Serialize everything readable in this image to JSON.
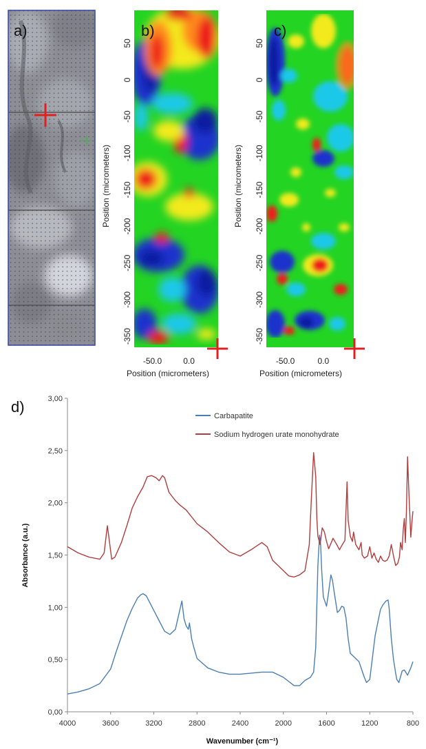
{
  "panels": {
    "a": {
      "letter": "a)"
    },
    "b": {
      "letter": "b)",
      "ylabel": "Position (micrometers)",
      "xlabel": "Position (micrometers)",
      "yticks": [
        "50",
        "0",
        "-50",
        "-100",
        "-150",
        "-200",
        "-250",
        "-300",
        "-350"
      ],
      "xticks": [
        "-50.0",
        "0.0"
      ]
    },
    "c": {
      "letter": "c)",
      "ylabel": "Position (micrometers)",
      "xlabel": "Position (micrometers)",
      "yticks": [
        "50",
        "0",
        "-50",
        "-100",
        "-150",
        "-200",
        "-250",
        "-300",
        "-350"
      ],
      "xticks": [
        "-50.0",
        "0.0"
      ]
    },
    "d": {
      "letter": "d)"
    }
  },
  "colors": {
    "carbapatite": "#4a7db5",
    "urate": "#b23b3b",
    "marker": "#e02020",
    "map_border": "#3344aa"
  },
  "chart_data": [
    {
      "type": "heatmap",
      "panel": "b",
      "xlabel": "Position (micrometers)",
      "ylabel": "Position (micrometers)",
      "xlim": [
        -75,
        40
      ],
      "ylim": [
        -365,
        95
      ],
      "xticks": [
        -50,
        0
      ],
      "yticks": [
        50,
        0,
        -50,
        -100,
        -150,
        -200,
        -250,
        -300,
        -350
      ],
      "colormap": "rainbow"
    },
    {
      "type": "heatmap",
      "panel": "c",
      "xlabel": "Position (micrometers)",
      "ylabel": "Position (micrometers)",
      "xlim": [
        -75,
        40
      ],
      "ylim": [
        -365,
        95
      ],
      "xticks": [
        -50,
        0
      ],
      "yticks": [
        50,
        0,
        -50,
        -100,
        -150,
        -200,
        -250,
        -300,
        -350
      ],
      "colormap": "rainbow"
    },
    {
      "type": "line",
      "panel": "d",
      "xlabel": "Wavenumber (cm⁻¹)",
      "ylabel": "Absorbance (a.u.)",
      "xlim": [
        4000,
        800
      ],
      "ylim": [
        0,
        3
      ],
      "x_reversed": true,
      "xticks": [
        "4000",
        "3600",
        "3200",
        "2800",
        "2400",
        "2000",
        "1600",
        "1200",
        "800"
      ],
      "yticks": [
        "0,00",
        "0,50",
        "1,00",
        "1,50",
        "2,00",
        "2,50",
        "3,00"
      ],
      "legend": "top-right",
      "series": [
        {
          "name": "Carbapatite",
          "color": "#4a7db5",
          "x": [
            4000,
            3900,
            3800,
            3700,
            3600,
            3550,
            3500,
            3450,
            3400,
            3350,
            3320,
            3300,
            3270,
            3200,
            3150,
            3100,
            3050,
            3000,
            2960,
            2940,
            2920,
            2900,
            2880,
            2870,
            2860,
            2850,
            2830,
            2800,
            2700,
            2600,
            2500,
            2400,
            2300,
            2200,
            2100,
            2000,
            1900,
            1850,
            1800,
            1750,
            1720,
            1700,
            1680,
            1665,
            1655,
            1645,
            1630,
            1600,
            1580,
            1560,
            1545,
            1530,
            1500,
            1480,
            1460,
            1440,
            1420,
            1400,
            1380,
            1350,
            1300,
            1250,
            1230,
            1200,
            1150,
            1100,
            1080,
            1050,
            1030,
            1020,
            1000,
            980,
            960,
            950,
            930,
            900,
            880,
            850,
            820,
            800
          ],
          "y": [
            0.17,
            0.19,
            0.22,
            0.27,
            0.41,
            0.57,
            0.72,
            0.87,
            0.99,
            1.09,
            1.12,
            1.13,
            1.11,
            0.97,
            0.87,
            0.77,
            0.74,
            0.79,
            0.97,
            1.06,
            0.89,
            0.82,
            0.79,
            0.85,
            0.78,
            0.7,
            0.62,
            0.51,
            0.42,
            0.38,
            0.36,
            0.36,
            0.37,
            0.38,
            0.38,
            0.33,
            0.25,
            0.25,
            0.3,
            0.33,
            0.38,
            0.62,
            1.4,
            1.69,
            1.6,
            1.36,
            1.1,
            1.01,
            1.15,
            1.31,
            1.26,
            1.15,
            0.95,
            0.97,
            1.01,
            1.0,
            0.9,
            0.7,
            0.56,
            0.53,
            0.48,
            0.33,
            0.28,
            0.31,
            0.73,
            0.98,
            1.02,
            1.06,
            1.07,
            0.99,
            0.7,
            0.5,
            0.37,
            0.31,
            0.28,
            0.39,
            0.4,
            0.35,
            0.42,
            0.48
          ]
        },
        {
          "name": "Sodium hydrogen urate monohydrate",
          "color": "#b23b3b",
          "x": [
            4000,
            3900,
            3800,
            3700,
            3660,
            3630,
            3610,
            3590,
            3560,
            3500,
            3450,
            3400,
            3350,
            3300,
            3260,
            3220,
            3180,
            3150,
            3120,
            3100,
            3060,
            3000,
            2960,
            2900,
            2800,
            2700,
            2600,
            2500,
            2400,
            2300,
            2200,
            2150,
            2100,
            2000,
            1950,
            1900,
            1850,
            1800,
            1760,
            1740,
            1720,
            1700,
            1690,
            1680,
            1660,
            1640,
            1620,
            1600,
            1580,
            1560,
            1540,
            1500,
            1480,
            1460,
            1430,
            1410,
            1400,
            1380,
            1360,
            1350,
            1330,
            1300,
            1280,
            1270,
            1250,
            1220,
            1200,
            1180,
            1160,
            1140,
            1120,
            1100,
            1080,
            1060,
            1040,
            1020,
            1000,
            980,
            960,
            940,
            925,
            915,
            900,
            890,
            880,
            870,
            860,
            850,
            840,
            830,
            820,
            810,
            800
          ],
          "y": [
            1.58,
            1.52,
            1.48,
            1.46,
            1.52,
            1.78,
            1.62,
            1.46,
            1.48,
            1.62,
            1.78,
            1.95,
            2.06,
            2.15,
            2.25,
            2.26,
            2.24,
            2.21,
            2.26,
            2.24,
            2.1,
            2.02,
            1.98,
            1.93,
            1.8,
            1.72,
            1.62,
            1.53,
            1.49,
            1.55,
            1.62,
            1.58,
            1.45,
            1.35,
            1.3,
            1.29,
            1.31,
            1.35,
            1.6,
            2.05,
            2.48,
            2.25,
            1.85,
            1.68,
            1.6,
            1.76,
            1.72,
            1.63,
            1.56,
            1.61,
            1.66,
            1.59,
            1.55,
            1.59,
            1.64,
            2.2,
            1.83,
            1.68,
            1.63,
            1.72,
            1.6,
            1.55,
            1.62,
            1.5,
            1.47,
            1.49,
            1.58,
            1.47,
            1.52,
            1.46,
            1.43,
            1.49,
            1.45,
            1.44,
            1.45,
            1.49,
            1.6,
            1.49,
            1.4,
            1.42,
            1.48,
            1.62,
            1.55,
            1.74,
            1.85,
            1.62,
            1.93,
            2.44,
            2.17,
            1.92,
            1.67,
            1.8,
            1.92
          ]
        }
      ]
    }
  ]
}
